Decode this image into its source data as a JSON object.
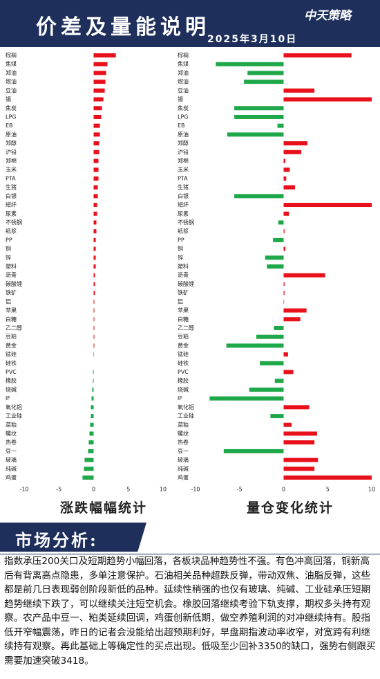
{
  "header": {
    "title": "价差及量能说明",
    "date": "2025年3月10日",
    "logo": "中天策略"
  },
  "chart_data": [
    {
      "type": "bar",
      "orientation": "horizontal",
      "title": "涨跌幅幅统计",
      "categories": [
        "棕榈",
        "焦煤",
        "郑油",
        "燃油",
        "豆油",
        "锡",
        "焦炭",
        "LPG",
        "EB",
        "原油",
        "郑醇",
        "沪铅",
        "郑棉",
        "玉米",
        "PTA",
        "生猪",
        "白银",
        "短纤",
        "尿素",
        "不锈钢",
        "纸浆",
        "PP",
        "铜",
        "锌",
        "塑料",
        "沥青",
        "碳酸锂",
        "铁矿",
        "铝",
        "苹果",
        "白糖",
        "乙二醇",
        "豆粕",
        "黄金",
        "锰硅",
        "硅铁",
        "PVC",
        "橡胶",
        "烧碱",
        "IF",
        "氧化铝",
        "工业硅",
        "菜粕",
        "螺纹",
        "热卷",
        "豆一",
        "玻璃",
        "纯碱",
        "鸡蛋"
      ],
      "values": [
        3.2,
        2.0,
        1.8,
        1.7,
        1.6,
        1.4,
        1.2,
        1.1,
        0.9,
        0.9,
        0.8,
        0.8,
        0.7,
        0.7,
        0.7,
        0.6,
        0.6,
        0.5,
        0.5,
        0.4,
        0.4,
        0.3,
        0.3,
        0.3,
        0.3,
        0.2,
        0.2,
        0.2,
        0.1,
        0.1,
        0.1,
        0.1,
        0.1,
        0.1,
        0.05,
        0.0,
        -0.1,
        -0.1,
        -0.2,
        -0.3,
        -0.4,
        -0.4,
        -0.5,
        -0.6,
        -0.7,
        -0.8,
        -1.3,
        -1.4,
        -1.6
      ],
      "xlim": [
        -10,
        10
      ],
      "xticks": [
        -10,
        -5,
        0,
        5,
        10
      ],
      "grid": false,
      "positive_color": "#e8101a",
      "negative_color": "#1fa84a"
    },
    {
      "type": "bar",
      "orientation": "horizontal",
      "title": "量仓变化统计",
      "categories": [
        "棕榈",
        "焦煤",
        "郑油",
        "燃油",
        "豆油",
        "锡",
        "焦炭",
        "LPG",
        "EB",
        "原油",
        "郑醇",
        "沪铅",
        "郑棉",
        "玉米",
        "PTA",
        "生猪",
        "白银",
        "短纤",
        "尿素",
        "不锈钢",
        "纸浆",
        "PP",
        "铜",
        "锌",
        "塑料",
        "沥青",
        "碳酸锂",
        "铁矿",
        "铝",
        "苹果",
        "白糖",
        "乙二醇",
        "豆粕",
        "黄金",
        "锰硅",
        "硅铁",
        "PVC",
        "橡胶",
        "烧碱",
        "IF",
        "氧化铝",
        "工业硅",
        "菜粕",
        "螺纹",
        "热卷",
        "豆一",
        "玻璃",
        "纯碱",
        "鸡蛋"
      ],
      "values": [
        7.7,
        -7.7,
        -4.1,
        -4.5,
        3.5,
        10,
        -5.6,
        -5.6,
        -0.7,
        -6.4,
        2.7,
        2.0,
        0.2,
        0.7,
        0.3,
        1.3,
        -5.6,
        10,
        0.6,
        -0.6,
        0.1,
        -1.2,
        0.2,
        -2.1,
        -1.9,
        4.7,
        0.1,
        0.1,
        0.05,
        2.6,
        1.9,
        -1.1,
        -3.1,
        -6.5,
        0.5,
        -2.7,
        1.1,
        -1.0,
        -3.9,
        -8.4,
        2.9,
        -1.5,
        0.9,
        3.8,
        3.5,
        -6.8,
        3.9,
        3.5,
        10
      ],
      "xlim": [
        -10,
        10
      ],
      "xticks": [
        -10,
        -5,
        0,
        5,
        10
      ],
      "grid": false,
      "positive_color": "#e8101a",
      "negative_color": "#1fa84a"
    }
  ],
  "analysis": {
    "heading": "市场分析:",
    "text": "指数承压200关口及短期趋势小幅回落，各板块品种趋势性不强。有色冲高回落，铜新高后有背离高点隐患，多单注意保护。石油相关品种超跌反弹，带动双焦、油脂反弹，这些都是前几日表现弱创阶段新低的品种。延续性稍强的也仅有玻璃、纯碱、工业硅承压短期趋势继续下跌了，可以继续关注短空机会。橡胶回落继续考验下轨支撑，期权多头持有观察。农产品中豆一、粕类延续回调，鸡蛋创新低期，做空养殖利润的对冲继续持有。股指低开窄幅震荡，昨日的记者会没能给出超预期利好，早盘期指波动率收窄，对宽跨有利继续持有观察。再此基础上等确定性的买点出现。低吸至少回补3350的缺口，强势右侧跟买需要加速突破3418。"
  }
}
